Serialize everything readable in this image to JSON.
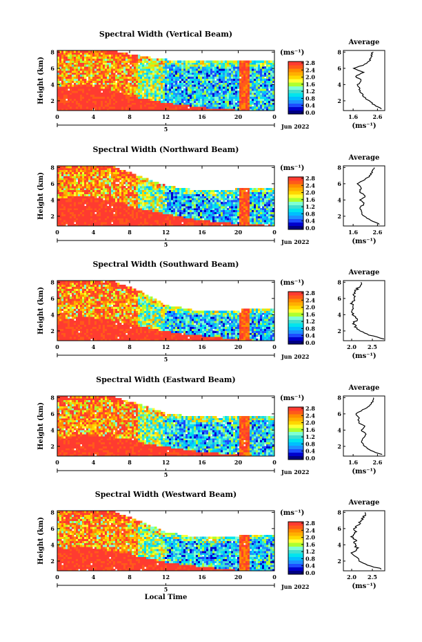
{
  "colorbar": {
    "unit": "(ms⁻¹)",
    "ticks": [
      "0.0",
      "0.4",
      "0.8",
      "1.2",
      "1.6",
      "2.0",
      "2.4",
      "2.8"
    ],
    "colors": [
      "#000080",
      "#0000cd",
      "#1d4cff",
      "#1e90ff",
      "#00bfff",
      "#00e5ee",
      "#40e0d0",
      "#7fffd4",
      "#adff2f",
      "#ffff33",
      "#ffd700",
      "#ffb000",
      "#ff8c00",
      "#ff5a1a",
      "#ff3b30"
    ]
  },
  "x_axis": {
    "ticks": [
      "0",
      "4",
      "8",
      "12",
      "16",
      "20",
      "0"
    ],
    "date_ticks": [
      "5"
    ],
    "date_label": "Jun 2022",
    "xlabel": "Local Time",
    "xlim": [
      0,
      24
    ]
  },
  "y_axis": {
    "ylabel": "Height (km)",
    "ticks": [
      "2",
      "4",
      "6",
      "8"
    ],
    "ylim": [
      0.8,
      8.2
    ]
  },
  "avg_labels": {
    "title": "Average",
    "xunit": "(ms⁻¹)"
  },
  "chart_data": [
    {
      "type": "heatmap",
      "title": "Spectral Width (Vertical Beam)",
      "xlabel": "",
      "ylabel": "Height (km)",
      "x_range": [
        0,
        24
      ],
      "y_range": [
        0.8,
        8.2
      ],
      "value_range": [
        0,
        2.8
      ],
      "unit": "ms-1",
      "boundary_top_km": [
        [
          0,
          8.2
        ],
        [
          6,
          8.2
        ],
        [
          9,
          7.6
        ],
        [
          11,
          7.2
        ],
        [
          13,
          7.0
        ],
        [
          16,
          6.9
        ],
        [
          20,
          6.9
        ],
        [
          22,
          6.9
        ],
        [
          24,
          6.9
        ]
      ],
      "red_top_km": [
        [
          0,
          3.6
        ],
        [
          3,
          4.0
        ],
        [
          6,
          3.4
        ],
        [
          8,
          2.6
        ],
        [
          12,
          1.8
        ],
        [
          16,
          1.2
        ],
        [
          20,
          0.9
        ],
        [
          24,
          0.8
        ]
      ],
      "avg_profile": {
        "title": "Average",
        "xlabel": "(ms-1)",
        "xlim": [
          1.2,
          2.9
        ],
        "xticks": [
          "1.6",
          "2.6"
        ],
        "height_km": [
          1,
          1.5,
          2,
          2.5,
          3,
          3.5,
          4,
          4.5,
          5,
          5.5,
          6,
          6.5,
          7,
          7.5,
          8
        ],
        "width": [
          2.8,
          2.45,
          2.25,
          2.05,
          1.92,
          1.86,
          1.8,
          1.95,
          1.7,
          2.0,
          1.65,
          2.1,
          2.3,
          2.35,
          2.4
        ]
      }
    },
    {
      "type": "heatmap",
      "title": "Spectral Width (Northward Beam)",
      "xlabel": "",
      "ylabel": "Height (km)",
      "x_range": [
        0,
        24
      ],
      "y_range": [
        0.8,
        8.2
      ],
      "value_range": [
        0,
        2.8
      ],
      "unit": "ms-1",
      "boundary_top_km": [
        [
          0,
          8.2
        ],
        [
          6,
          8.2
        ],
        [
          9,
          7.0
        ],
        [
          12,
          5.8
        ],
        [
          15,
          5.3
        ],
        [
          18,
          5.1
        ],
        [
          20,
          5.4
        ],
        [
          22,
          5.6
        ],
        [
          24,
          5.6
        ]
      ],
      "red_top_km": [
        [
          0,
          4.2
        ],
        [
          3,
          4.6
        ],
        [
          6,
          4.0
        ],
        [
          9,
          3.0
        ],
        [
          12,
          2.3
        ],
        [
          16,
          1.5
        ],
        [
          20,
          1.1
        ],
        [
          24,
          0.9
        ]
      ],
      "avg_profile": {
        "title": "Average",
        "xlabel": "(ms-1)",
        "xlim": [
          1.2,
          2.9
        ],
        "xticks": [
          "1.6",
          "2.6"
        ],
        "height_km": [
          1,
          1.5,
          2,
          2.5,
          3,
          3.5,
          4,
          4.5,
          5,
          5.5,
          6,
          6.5,
          7,
          7.5,
          8
        ],
        "width": [
          2.7,
          2.3,
          2.05,
          1.95,
          1.85,
          2.05,
          1.9,
          2.1,
          1.85,
          1.95,
          1.8,
          2.05,
          2.3,
          2.4,
          2.45
        ]
      }
    },
    {
      "type": "heatmap",
      "title": "Spectral Width (Southward Beam)",
      "xlabel": "",
      "ylabel": "Height (km)",
      "x_range": [
        0,
        24
      ],
      "y_range": [
        0.8,
        8.2
      ],
      "value_range": [
        0,
        2.8
      ],
      "unit": "ms-1",
      "boundary_top_km": [
        [
          0,
          8.2
        ],
        [
          6,
          8.2
        ],
        [
          9,
          7.0
        ],
        [
          12,
          5.2
        ],
        [
          15,
          4.6
        ],
        [
          18,
          4.5
        ],
        [
          20,
          4.6
        ],
        [
          22,
          4.8
        ],
        [
          24,
          4.8
        ]
      ],
      "red_top_km": [
        [
          0,
          3.2
        ],
        [
          3,
          3.8
        ],
        [
          6,
          3.4
        ],
        [
          9,
          2.6
        ],
        [
          12,
          2.0
        ],
        [
          16,
          1.4
        ],
        [
          20,
          1.0
        ],
        [
          24,
          0.8
        ]
      ],
      "avg_profile": {
        "title": "Average",
        "xlabel": "(ms-1)",
        "xlim": [
          1.8,
          2.8
        ],
        "xticks": [
          "2.0",
          "2.5"
        ],
        "height_km": [
          1,
          1.5,
          2,
          2.5,
          3,
          3.5,
          4,
          4.5,
          5,
          5.5,
          6,
          6.5,
          7,
          7.5,
          8
        ],
        "width": [
          2.75,
          2.45,
          2.2,
          2.1,
          2.05,
          2.15,
          2.05,
          2.0,
          2.05,
          2.0,
          2.1,
          2.05,
          2.1,
          2.2,
          2.25
        ]
      }
    },
    {
      "type": "heatmap",
      "title": "Spectral Width (Eastward Beam)",
      "xlabel": "",
      "ylabel": "Height (km)",
      "x_range": [
        0,
        24
      ],
      "y_range": [
        0.8,
        8.2
      ],
      "value_range": [
        0,
        2.8
      ],
      "unit": "ms-1",
      "boundary_top_km": [
        [
          0,
          8.2
        ],
        [
          6,
          8.2
        ],
        [
          9,
          7.2
        ],
        [
          12,
          6.1
        ],
        [
          15,
          5.7
        ],
        [
          18,
          5.6
        ],
        [
          20,
          5.7
        ],
        [
          22,
          5.8
        ],
        [
          24,
          5.8
        ]
      ],
      "red_top_km": [
        [
          0,
          2.9
        ],
        [
          3,
          3.6
        ],
        [
          6,
          3.2
        ],
        [
          9,
          2.5
        ],
        [
          12,
          2.0
        ],
        [
          16,
          1.3
        ],
        [
          20,
          1.0
        ],
        [
          24,
          0.8
        ]
      ],
      "avg_profile": {
        "title": "Average",
        "xlabel": "(ms-1)",
        "xlim": [
          1.2,
          2.9
        ],
        "xticks": [
          "1.6",
          "2.6"
        ],
        "height_km": [
          1,
          1.5,
          2,
          2.5,
          3,
          3.5,
          4,
          4.5,
          5,
          5.5,
          6,
          6.5,
          7,
          7.5,
          8
        ],
        "width": [
          2.8,
          2.3,
          2.1,
          1.95,
          2.0,
          2.1,
          1.95,
          2.1,
          1.8,
          1.85,
          1.7,
          2.0,
          2.3,
          2.4,
          2.45
        ]
      }
    },
    {
      "type": "heatmap",
      "title": "Spectral Width (Westward Beam)",
      "xlabel": "Local Time",
      "ylabel": "Height (km)",
      "x_range": [
        0,
        24
      ],
      "y_range": [
        0.8,
        8.2
      ],
      "value_range": [
        0,
        2.8
      ],
      "unit": "ms-1",
      "boundary_top_km": [
        [
          0,
          8.2
        ],
        [
          6,
          8.2
        ],
        [
          9,
          7.0
        ],
        [
          12,
          5.6
        ],
        [
          15,
          5.0
        ],
        [
          18,
          4.9
        ],
        [
          20,
          5.1
        ],
        [
          22,
          5.3
        ],
        [
          24,
          5.3
        ]
      ],
      "red_top_km": [
        [
          0,
          3.4
        ],
        [
          3,
          3.9
        ],
        [
          6,
          3.3
        ],
        [
          9,
          2.6
        ],
        [
          12,
          1.9
        ],
        [
          16,
          1.3
        ],
        [
          20,
          0.9
        ],
        [
          24,
          0.8
        ]
      ],
      "avg_profile": {
        "title": "Average",
        "xlabel": "(ms-1)",
        "xlim": [
          1.8,
          2.8
        ],
        "xticks": [
          "2.0",
          "2.5"
        ],
        "height_km": [
          1,
          1.5,
          2,
          2.5,
          3,
          3.5,
          4,
          4.5,
          5,
          5.5,
          6,
          6.5,
          7,
          7.5,
          8
        ],
        "width": [
          2.75,
          2.4,
          2.2,
          2.1,
          2.0,
          2.15,
          2.05,
          2.1,
          2.0,
          2.1,
          2.05,
          2.15,
          2.25,
          2.3,
          2.35
        ]
      }
    }
  ]
}
